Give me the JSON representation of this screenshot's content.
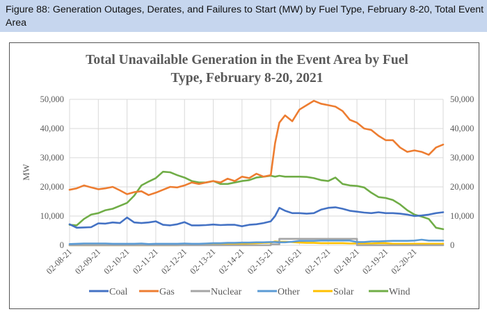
{
  "caption": {
    "text": "Figure 88: Generation Outages, Derates, and Failures to Start (MW) by Fuel Type, February 8-20, Total Event Area"
  },
  "chart_data": {
    "type": "line",
    "title_lines": [
      "Total Unavailable Generation in the Event Area by Fuel",
      "Type, February 8-20, 2021"
    ],
    "xlabel": "",
    "ylabel": "MW",
    "ylim": [
      0,
      50000
    ],
    "yticks": [
      0,
      10000,
      20000,
      30000,
      40000,
      50000
    ],
    "ytick_labels": [
      "0",
      "10,000",
      "20,000",
      "30,000",
      "40,000",
      "50,000"
    ],
    "secondary_ytick_labels": [
      "0",
      "10,000",
      "20,000",
      "30,000",
      "40,000",
      "50,000"
    ],
    "x_unit": "days since 02-08-21",
    "xlim": [
      0,
      13
    ],
    "categories": [
      "02-08-21",
      "02-09-21",
      "02-10-21",
      "02-11-21",
      "02-12-21",
      "02-13-21",
      "02-14-21",
      "02-15-21",
      "02-16-21",
      "02-17-21",
      "02-18-21",
      "02-19-21",
      "02-20-21"
    ],
    "grid": true,
    "legend_position": "bottom",
    "x": [
      0,
      0.25,
      0.5,
      0.75,
      1,
      1.25,
      1.5,
      1.75,
      2,
      2.25,
      2.5,
      2.75,
      3,
      3.25,
      3.5,
      3.75,
      4,
      4.25,
      4.5,
      4.75,
      5,
      5.25,
      5.5,
      5.75,
      6,
      6.25,
      6.5,
      6.75,
      7,
      7.15,
      7.3,
      7.5,
      7.75,
      8,
      8.25,
      8.5,
      8.75,
      9,
      9.25,
      9.5,
      9.75,
      10,
      10.25,
      10.5,
      10.75,
      11,
      11.25,
      11.5,
      11.75,
      12,
      12.25,
      12.5,
      12.75,
      13
    ],
    "series": [
      {
        "name": "Coal",
        "color": "#4472c4",
        "values": [
          7200,
          6000,
          6100,
          6200,
          7500,
          7400,
          7800,
          7600,
          9500,
          7800,
          7600,
          7800,
          8200,
          7000,
          6800,
          7200,
          7900,
          6800,
          6800,
          6900,
          7100,
          6900,
          7000,
          7000,
          6500,
          7000,
          7200,
          7600,
          8200,
          10000,
          12800,
          11800,
          11000,
          11000,
          10800,
          11000,
          12200,
          12800,
          13000,
          12500,
          11800,
          11500,
          11200,
          11000,
          11300,
          11000,
          11000,
          10800,
          10500,
          10000,
          10200,
          10500,
          11000,
          11300
        ]
      },
      {
        "name": "Gas",
        "color": "#ed7d31",
        "values": [
          19000,
          19500,
          20500,
          19800,
          19200,
          19500,
          20000,
          18800,
          17500,
          18200,
          18500,
          17200,
          18000,
          19000,
          20000,
          19800,
          20500,
          21500,
          21000,
          21500,
          22000,
          21500,
          22800,
          22000,
          23500,
          23000,
          24500,
          23500,
          24000,
          35000,
          42000,
          44500,
          42500,
          46500,
          48000,
          49500,
          48500,
          48000,
          47500,
          46000,
          43000,
          42000,
          40000,
          39500,
          37500,
          36000,
          36000,
          33500,
          32000,
          32500,
          32000,
          31000,
          33500,
          34500
        ]
      },
      {
        "name": "Nuclear",
        "color": "#a5a5a5",
        "values": [
          0,
          0,
          0,
          0,
          0,
          0,
          0,
          0,
          0,
          0,
          0,
          0,
          0,
          0,
          0,
          0,
          0,
          0,
          0,
          0,
          0,
          0,
          0,
          0,
          0,
          0,
          0,
          0,
          300,
          300,
          2200,
          2200,
          2200,
          2200,
          2200,
          2200,
          2200,
          2200,
          2200,
          2200,
          2200,
          0,
          0,
          0,
          0,
          0,
          0,
          0,
          0,
          0,
          0,
          0,
          0,
          0
        ]
      },
      {
        "name": "Other",
        "color": "#5b9bd5",
        "values": [
          400,
          500,
          600,
          600,
          600,
          600,
          500,
          500,
          500,
          500,
          600,
          400,
          500,
          500,
          500,
          500,
          600,
          500,
          500,
          600,
          700,
          700,
          800,
          800,
          900,
          900,
          1000,
          1000,
          1100,
          1100,
          1000,
          1000,
          1200,
          1500,
          1500,
          1500,
          1600,
          1600,
          1600,
          1600,
          1600,
          1100,
          1100,
          1300,
          1300,
          1400,
          1500,
          1500,
          1500,
          1600,
          1900,
          1600,
          1600,
          1600
        ]
      },
      {
        "name": "Solar",
        "color": "#ffc000",
        "values": [
          0,
          0,
          0,
          0,
          0,
          0,
          0,
          0,
          0,
          0,
          0,
          0,
          0,
          0,
          0,
          0,
          100,
          100,
          100,
          200,
          300,
          300,
          400,
          500,
          500,
          600,
          700,
          800,
          900,
          1300,
          1200,
          1200,
          1100,
          900,
          800,
          800,
          700,
          700,
          700,
          700,
          600,
          600,
          600,
          600,
          700,
          700,
          500,
          500,
          500,
          500,
          500,
          500,
          500,
          500
        ]
      },
      {
        "name": "Wind",
        "color": "#70ad47",
        "values": [
          7000,
          6800,
          9000,
          10500,
          11000,
          12000,
          12500,
          13500,
          14500,
          17000,
          20500,
          21800,
          23000,
          25200,
          25000,
          24000,
          23200,
          22000,
          21500,
          21500,
          22000,
          21000,
          21000,
          21500,
          22000,
          22300,
          23200,
          23500,
          23800,
          23500,
          23800,
          23500,
          23500,
          23500,
          23400,
          23000,
          22300,
          22000,
          23200,
          21000,
          20500,
          20300,
          19800,
          18000,
          16500,
          16200,
          15500,
          14000,
          12000,
          10500,
          9800,
          9000,
          6000,
          5500
        ]
      }
    ]
  }
}
